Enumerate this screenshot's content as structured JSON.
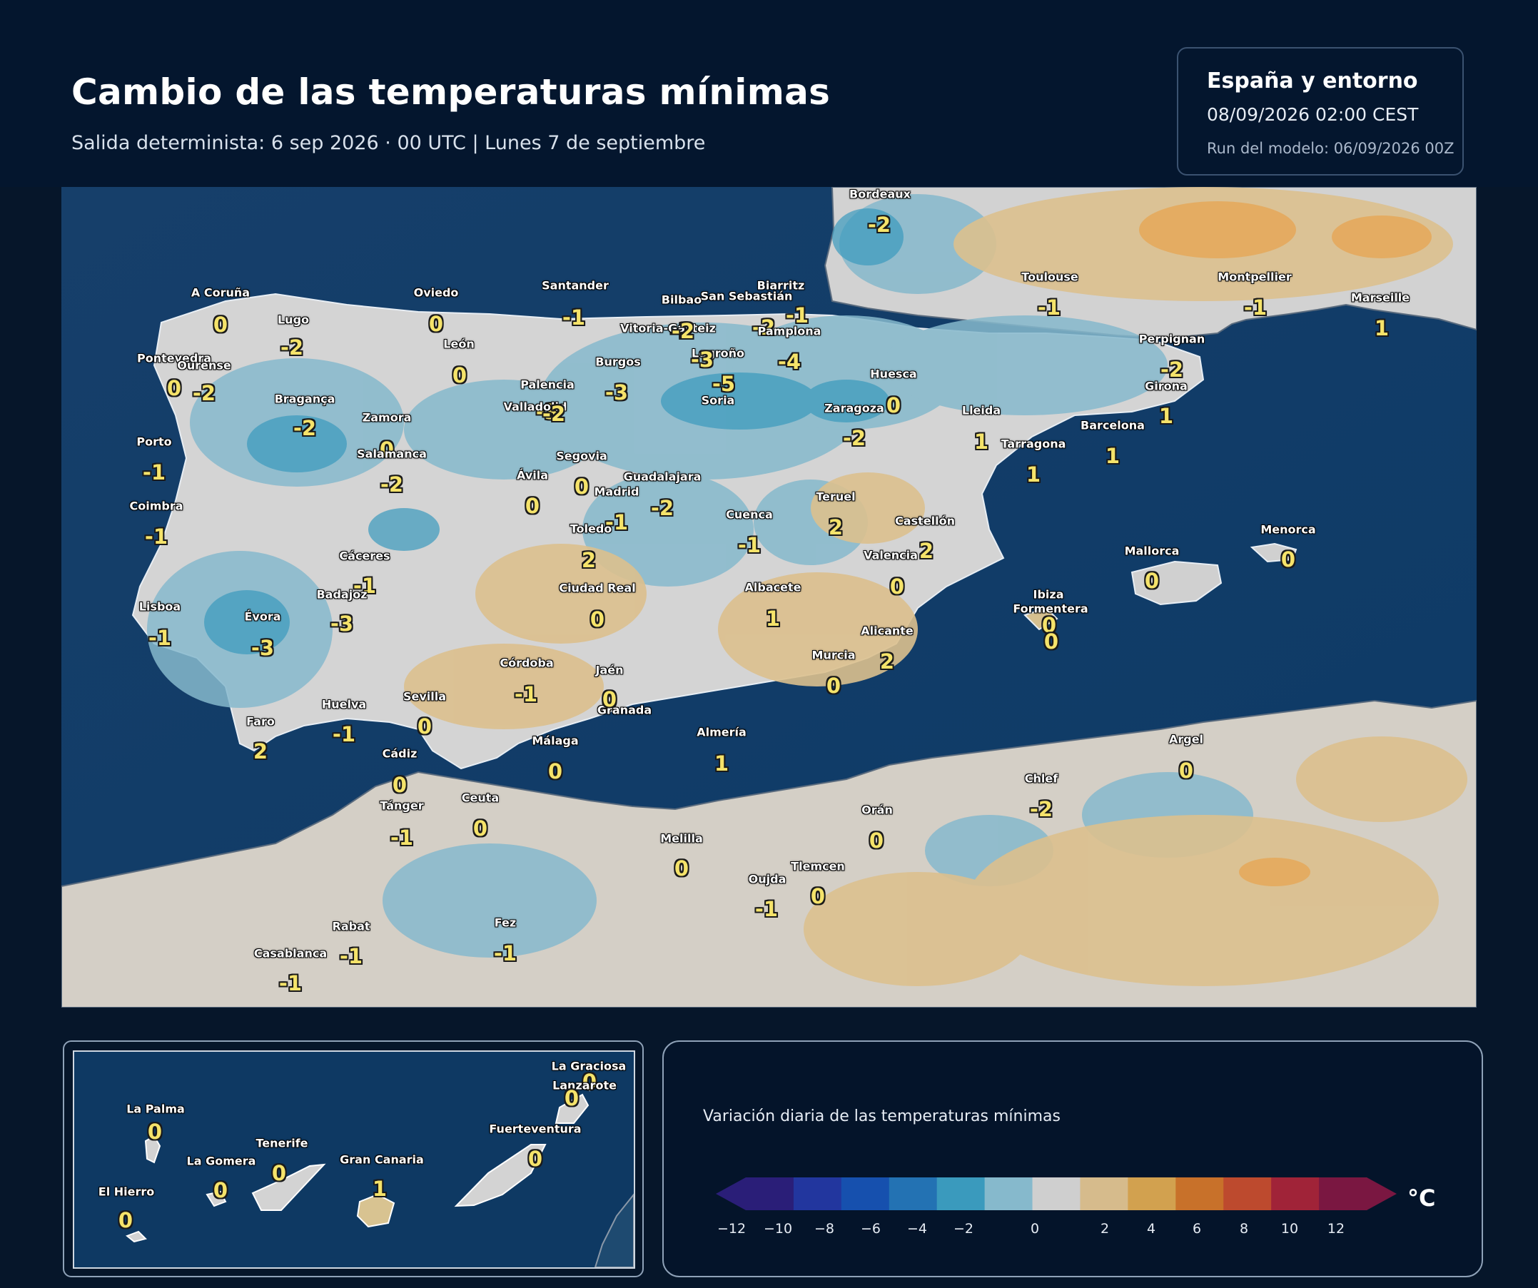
{
  "header": {
    "title": "Cambio de las temperaturas mínimas",
    "subtitle": "Salida determinista: 6 sep 2026 · 00 UTC  |  Lunes 7 de septiembre"
  },
  "info": {
    "region": "España y entorno",
    "valid": "08/09/2026  02:00 CEST",
    "run": "Run del modelo: 06/09/2026 00Z"
  },
  "map": {
    "colors": {
      "sea": "#0f3d6c",
      "land_neutral": "#d3d3d3",
      "land_cool": "#86b9cc",
      "land_warm": "#dcc08e"
    },
    "cities": [
      {
        "name": "Bordeaux",
        "value": "-2"
      },
      {
        "name": "A Coruña",
        "value": "0"
      },
      {
        "name": "Lugo",
        "value": "-2"
      },
      {
        "name": "Oviedo",
        "value": "0"
      },
      {
        "name": "Santander",
        "value": "-1"
      },
      {
        "name": "Bilbao",
        "value": "-2"
      },
      {
        "name": "Vitoria-Gasteiz",
        "value": "-2"
      },
      {
        "name": "San Sebastián",
        "value": "-2"
      },
      {
        "name": "Biarritz",
        "value": "-1"
      },
      {
        "name": "Pamplona",
        "value": "-4"
      },
      {
        "name": "Toulouse",
        "value": "-1"
      },
      {
        "name": "Montpellier",
        "value": "-1"
      },
      {
        "name": "Marseille",
        "value": "1"
      },
      {
        "name": "Pontevedra",
        "value": "0"
      },
      {
        "name": "Ourense",
        "value": "-2"
      },
      {
        "name": "León",
        "value": "0"
      },
      {
        "name": "Burgos",
        "value": "-3"
      },
      {
        "name": "Logroño",
        "value": "-3"
      },
      {
        "name": "Perpignan",
        "value": "-2"
      },
      {
        "name": "Palencia",
        "value": "-3"
      },
      {
        "name": "Huesca",
        "value": "0"
      },
      {
        "name": "Soria",
        "value": "-5"
      },
      {
        "name": "Girona",
        "value": "1"
      },
      {
        "name": "Bragança",
        "value": "-2"
      },
      {
        "name": "Valladolid",
        "value": "-2"
      },
      {
        "name": "Zaragoza",
        "value": "-2"
      },
      {
        "name": "Lleida",
        "value": "1"
      },
      {
        "name": "Zamora",
        "value": "0"
      },
      {
        "name": "Barcelona",
        "value": "1"
      },
      {
        "name": "Porto",
        "value": "-1"
      },
      {
        "name": "Salamanca",
        "value": "-2"
      },
      {
        "name": "Tarragona",
        "value": "1"
      },
      {
        "name": "Segovia",
        "value": "0"
      },
      {
        "name": "Ávila",
        "value": "0"
      },
      {
        "name": "Guadalajara",
        "value": "-2"
      },
      {
        "name": "Madrid",
        "value": "-1"
      },
      {
        "name": "Coimbra",
        "value": "-1"
      },
      {
        "name": "Teruel",
        "value": "2"
      },
      {
        "name": "Cuenca",
        "value": "-1"
      },
      {
        "name": "Toledo",
        "value": "2"
      },
      {
        "name": "Castellón",
        "value": "2"
      },
      {
        "name": "Menorca",
        "value": "0"
      },
      {
        "name": "Cáceres",
        "value": "-1"
      },
      {
        "name": "Valencia",
        "value": "0"
      },
      {
        "name": "Mallorca",
        "value": "0"
      },
      {
        "name": "Ciudad Real",
        "value": "0"
      },
      {
        "name": "Albacete",
        "value": "1"
      },
      {
        "name": "Badajoz",
        "value": "-3"
      },
      {
        "name": "Ibiza",
        "value": "0"
      },
      {
        "name": "Lisboa",
        "value": "-1"
      },
      {
        "name": "Formentera",
        "value": "0"
      },
      {
        "name": "Évora",
        "value": "-3"
      },
      {
        "name": "Alicante",
        "value": "2"
      },
      {
        "name": "Murcia",
        "value": "0"
      },
      {
        "name": "Córdoba",
        "value": "-1"
      },
      {
        "name": "Jaén",
        "value": "0"
      },
      {
        "name": "Sevilla",
        "value": "0"
      },
      {
        "name": "Huelva",
        "value": "-1"
      },
      {
        "name": "Granada",
        "value": "0"
      },
      {
        "name": "Faro",
        "value": "2"
      },
      {
        "name": "Almería",
        "value": "1"
      },
      {
        "name": "Málaga",
        "value": "0"
      },
      {
        "name": "Argel",
        "value": "0"
      },
      {
        "name": "Cádiz",
        "value": "0"
      },
      {
        "name": "Chlef",
        "value": "-2"
      },
      {
        "name": "Tánger",
        "value": "-1"
      },
      {
        "name": "Ceuta",
        "value": "0"
      },
      {
        "name": "Orán",
        "value": "0"
      },
      {
        "name": "Melilla",
        "value": "0"
      },
      {
        "name": "Tlemcen",
        "value": "0"
      },
      {
        "name": "Oujda",
        "value": "-1"
      },
      {
        "name": "Rabat",
        "value": "-1"
      },
      {
        "name": "Fez",
        "value": "-1"
      },
      {
        "name": "Casablanca",
        "value": "-1"
      }
    ]
  },
  "canarias": {
    "islands": [
      {
        "name": "La Graciosa",
        "value": "0"
      },
      {
        "name": "Lanzarote",
        "value": "0"
      },
      {
        "name": "La Palma",
        "value": "0"
      },
      {
        "name": "Fuerteventura",
        "value": "0"
      },
      {
        "name": "Tenerife",
        "value": "0"
      },
      {
        "name": "La Gomera",
        "value": "0"
      },
      {
        "name": "Gran Canaria",
        "value": "1"
      },
      {
        "name": "El Hierro",
        "value": "0"
      }
    ]
  },
  "legend": {
    "title": "Variación diaria de las temperaturas mínimas",
    "unit": "°C",
    "ticks": [
      "−12",
      "−10",
      "−8",
      "−6",
      "−4",
      "−2",
      "0",
      "2",
      "4",
      "6",
      "8",
      "10",
      "12"
    ],
    "colors": [
      "#2a1e78",
      "#22369e",
      "#1650ae",
      "#2372b3",
      "#3a9abd",
      "#86b9cc",
      "#cfcfcf",
      "#d6bb8c",
      "#d2a14f",
      "#c8712a",
      "#bd4a2e",
      "#a02338",
      "#7a1741"
    ]
  }
}
